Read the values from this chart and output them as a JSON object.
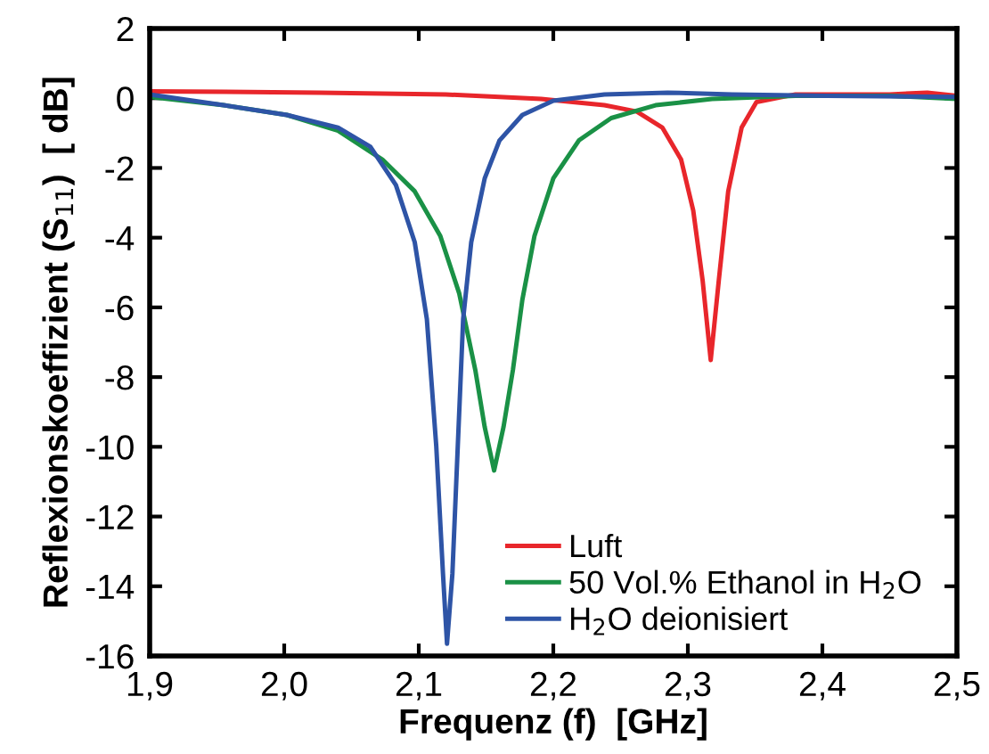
{
  "chart_data": {
    "type": "line",
    "xlabel": "Frequenz (f)  [GHz]",
    "ylabel": "Reflexionskoeffizient (S$_{11}$)  [ dB]",
    "xlim": [
      1.9,
      2.5
    ],
    "ylim": [
      -16,
      2
    ],
    "xticks": [
      {
        "value": 1.9,
        "label": "1,9"
      },
      {
        "value": 2.0,
        "label": "2,0"
      },
      {
        "value": 2.1,
        "label": "2,1"
      },
      {
        "value": 2.2,
        "label": "2,2"
      },
      {
        "value": 2.3,
        "label": "2,3"
      },
      {
        "value": 2.4,
        "label": "2,4"
      },
      {
        "value": 2.5,
        "label": "2,5"
      }
    ],
    "yticks": [
      2,
      0,
      -2,
      -4,
      -6,
      -8,
      -10,
      -12,
      -14,
      -16
    ],
    "legend": "bottom",
    "grid": false,
    "marker": "none",
    "line_style": "solid",
    "series": [
      {
        "name": "Luft",
        "color": "#e8262b",
        "x": [
          1.9,
          2.026,
          2.12,
          2.191,
          2.238,
          2.262,
          2.281,
          2.295,
          2.304,
          2.311,
          2.317,
          2.323,
          2.33,
          2.34,
          2.351,
          2.38,
          2.45,
          2.478,
          2.5
        ],
        "values": [
          0.2,
          0.16,
          0.11,
          -0.02,
          -0.2,
          -0.38,
          -0.84,
          -1.76,
          -3.22,
          -5.23,
          -7.51,
          -5.23,
          -2.67,
          -0.84,
          -0.11,
          0.11,
          0.11,
          0.16,
          0.07
        ]
      },
      {
        "name": "50 Vol.% Ethanol in H$_{2}$O",
        "color": "#1a9146",
        "x": [
          1.9,
          1.955,
          2.002,
          2.04,
          2.073,
          2.097,
          2.116,
          2.13,
          2.142,
          2.149,
          2.156,
          2.163,
          2.17,
          2.177,
          2.186,
          2.2,
          2.219,
          2.243,
          2.276,
          2.318,
          2.38,
          2.45,
          2.5
        ],
        "values": [
          0.04,
          -0.2,
          -0.48,
          -0.93,
          -1.76,
          -2.67,
          -3.95,
          -5.59,
          -7.79,
          -9.43,
          -10.68,
          -9.43,
          -7.79,
          -5.78,
          -3.95,
          -2.3,
          -1.21,
          -0.57,
          -0.2,
          -0.02,
          0.07,
          0.07,
          -0.02
        ]
      },
      {
        "name": "H$_{2}$O deionisiert",
        "color": "#2e54a6",
        "x": [
          1.9,
          1.955,
          2.002,
          2.04,
          2.064,
          2.083,
          2.097,
          2.106,
          2.113,
          2.118,
          2.121,
          2.125,
          2.129,
          2.133,
          2.139,
          2.149,
          2.16,
          2.177,
          2.2,
          2.238,
          2.285,
          2.333,
          2.403,
          2.5
        ],
        "values": [
          0.11,
          -0.2,
          -0.48,
          -0.84,
          -1.39,
          -2.49,
          -4.13,
          -6.33,
          -9.98,
          -13.64,
          -15.65,
          -13.64,
          -9.98,
          -6.33,
          -4.13,
          -2.3,
          -1.21,
          -0.48,
          -0.07,
          0.11,
          0.16,
          0.11,
          0.07,
          0.04
        ]
      }
    ]
  }
}
